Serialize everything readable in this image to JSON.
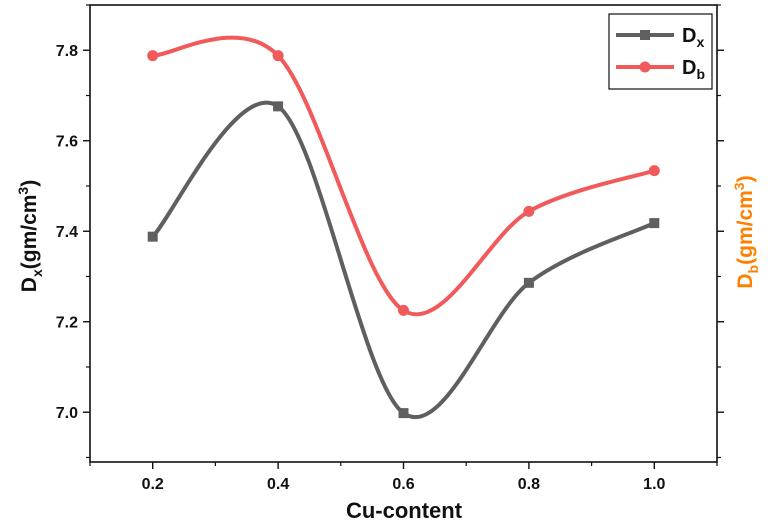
{
  "chart_data": {
    "type": "line",
    "xlabel": "Cu-content",
    "ylabel_left": {
      "main": "D",
      "sub": "x",
      "unit_pre": "(gm/cm",
      "sup": "3",
      "unit_post": ")"
    },
    "ylabel_right": {
      "main": "D",
      "sub": "b",
      "unit_pre": "(gm/cm",
      "sup": "3",
      "unit_post": ")"
    },
    "xlim": [
      0.1,
      1.1
    ],
    "ylim": [
      6.89,
      7.9
    ],
    "x_ticks": [
      "0.2",
      "0.4",
      "0.6",
      "0.8",
      "1.0"
    ],
    "y_ticks": [
      "7.0",
      "7.2",
      "7.4",
      "7.6",
      "7.8"
    ],
    "legend_position": "top-right",
    "grid": false,
    "series": [
      {
        "name": {
          "main": "D",
          "sub": "x"
        },
        "color": "#5f5f5f",
        "marker": "square",
        "smooth": true,
        "x": [
          0.2,
          0.4,
          0.6,
          0.8,
          1.0
        ],
        "y": [
          7.388,
          7.676,
          6.998,
          7.286,
          7.418
        ]
      },
      {
        "name": {
          "main": "D",
          "sub": "b"
        },
        "color": "#f05a5a",
        "marker": "circle",
        "smooth": true,
        "x": [
          0.2,
          0.4,
          0.6,
          0.8,
          1.0
        ],
        "y": [
          7.788,
          7.788,
          7.225,
          7.444,
          7.534
        ]
      }
    ],
    "colors": {
      "axis": "#111111",
      "right_axis_title": "#ff8000"
    }
  }
}
